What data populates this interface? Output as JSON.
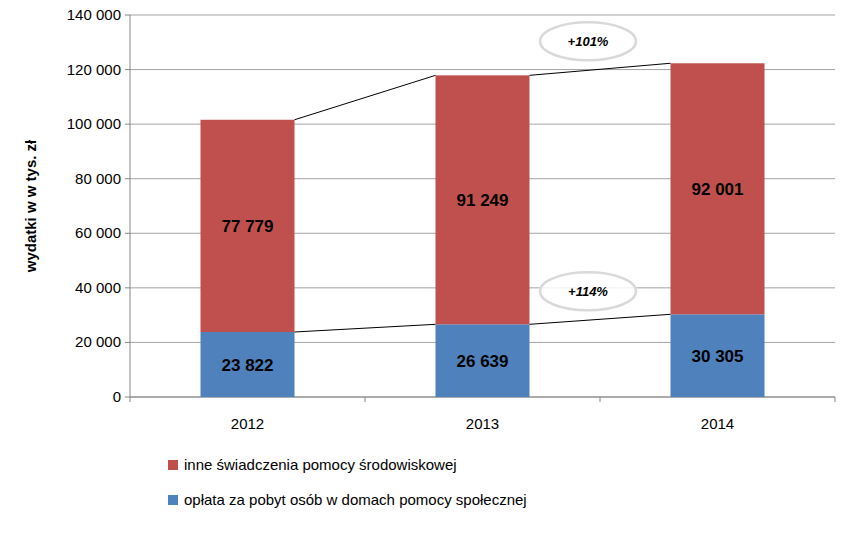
{
  "chart_data": {
    "type": "bar",
    "stacked": true,
    "data_labels": true,
    "grid": true,
    "legend": "bottom",
    "y_label": "wydatki w w tys. zł",
    "categories": [
      "2012",
      "2013",
      "2014"
    ],
    "series": [
      {
        "name": "opłata za pobyt osób w domach pomocy społecznej",
        "color": "#4f81bd",
        "values": [
          23822,
          26639,
          30305
        ],
        "value_labels": [
          "23 822",
          "26 639",
          "30 305"
        ]
      },
      {
        "name": "inne świadczenia pomocy środowiskowej",
        "color": "#c0504d",
        "values": [
          77779,
          91249,
          92001
        ],
        "value_labels": [
          "77 779",
          "91 249",
          "92 001"
        ]
      }
    ],
    "ylim": [
      0,
      140000
    ],
    "yticks": [
      0,
      {
        "value": 20000,
        "label": "20 000"
      },
      {
        "value": 40000,
        "label": "40 000"
      },
      {
        "value": 60000,
        "label": "60 000"
      },
      {
        "value": 80000,
        "label": "80 000"
      },
      {
        "value": 100000,
        "label": "100 000"
      },
      {
        "value": 120000,
        "label": "120 000"
      },
      {
        "value": 140000,
        "label": "140 000"
      }
    ],
    "annotations": [
      {
        "text": "+101%"
      },
      {
        "text": "+114%"
      }
    ]
  }
}
